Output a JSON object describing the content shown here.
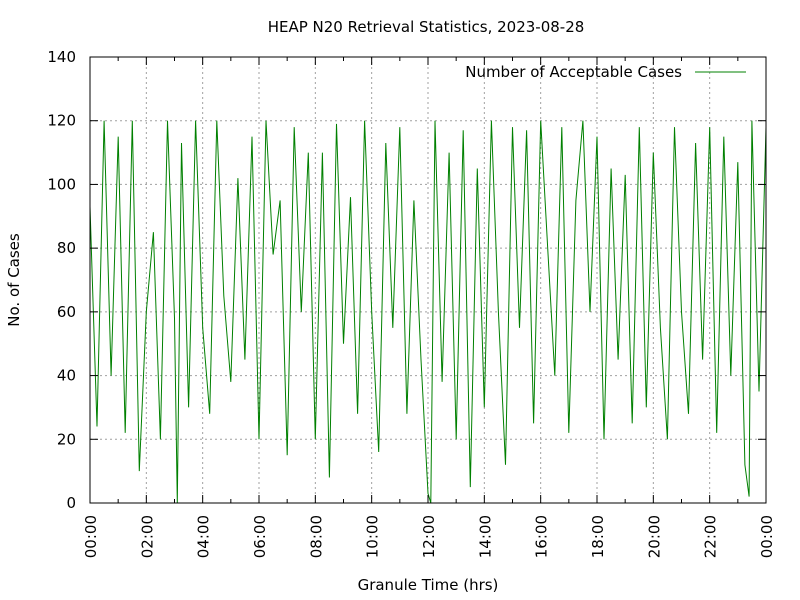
{
  "chart_data": {
    "type": "line",
    "title": "HEAP N20 Retrieval Statistics, 2023-08-28",
    "xlabel": "Granule Time (hrs)",
    "ylabel": "No. of Cases",
    "x_range": [
      "00:00",
      "24:00"
    ],
    "ylim": [
      0,
      140
    ],
    "x_ticks": [
      "00:00",
      "02:00",
      "04:00",
      "06:00",
      "08:00",
      "10:00",
      "12:00",
      "14:00",
      "16:00",
      "18:00",
      "20:00",
      "22:00",
      "00:00"
    ],
    "y_ticks": [
      0,
      20,
      40,
      60,
      80,
      100,
      120,
      140
    ],
    "grid": true,
    "legend_position": "top-right",
    "series": [
      {
        "name": "Number of Acceptable Cases",
        "color": "#008000",
        "x_hours": [
          0.0,
          0.25,
          0.5,
          0.75,
          1.0,
          1.25,
          1.5,
          1.75,
          2.0,
          2.25,
          2.5,
          2.75,
          3.0,
          3.1,
          3.25,
          3.5,
          3.75,
          4.0,
          4.25,
          4.5,
          4.75,
          5.0,
          5.25,
          5.5,
          5.75,
          6.0,
          6.25,
          6.5,
          6.75,
          7.0,
          7.25,
          7.5,
          7.75,
          8.0,
          8.25,
          8.5,
          8.75,
          9.0,
          9.25,
          9.5,
          9.75,
          10.0,
          10.25,
          10.5,
          10.75,
          11.0,
          11.25,
          11.5,
          11.75,
          12.0,
          12.1,
          12.25,
          12.5,
          12.75,
          13.0,
          13.25,
          13.5,
          13.75,
          14.0,
          14.25,
          14.5,
          14.75,
          15.0,
          15.25,
          15.5,
          15.75,
          16.0,
          16.25,
          16.5,
          16.75,
          17.0,
          17.25,
          17.5,
          17.75,
          18.0,
          18.25,
          18.5,
          18.75,
          19.0,
          19.25,
          19.5,
          19.75,
          20.0,
          20.25,
          20.5,
          20.75,
          21.0,
          21.25,
          21.5,
          21.75,
          22.0,
          22.25,
          22.5,
          22.75,
          23.0,
          23.25,
          23.4,
          23.5,
          23.75,
          24.0
        ],
        "y": [
          93,
          24,
          120,
          40,
          115,
          22,
          120,
          10,
          60,
          85,
          20,
          120,
          58,
          0,
          113,
          30,
          120,
          55,
          28,
          120,
          65,
          38,
          102,
          45,
          115,
          20,
          120,
          78,
          95,
          15,
          118,
          60,
          110,
          20,
          110,
          8,
          119,
          50,
          96,
          28,
          120,
          60,
          16,
          113,
          55,
          118,
          28,
          95,
          45,
          3,
          0,
          120,
          38,
          110,
          20,
          117,
          5,
          105,
          30,
          120,
          60,
          12,
          118,
          55,
          117,
          25,
          120,
          80,
          40,
          118,
          22,
          95,
          120,
          60,
          115,
          20,
          105,
          45,
          103,
          25,
          118,
          30,
          110,
          55,
          20,
          118,
          60,
          28,
          113,
          45,
          118,
          22,
          115,
          40,
          107,
          12,
          2,
          120,
          35,
          118
        ]
      }
    ]
  }
}
